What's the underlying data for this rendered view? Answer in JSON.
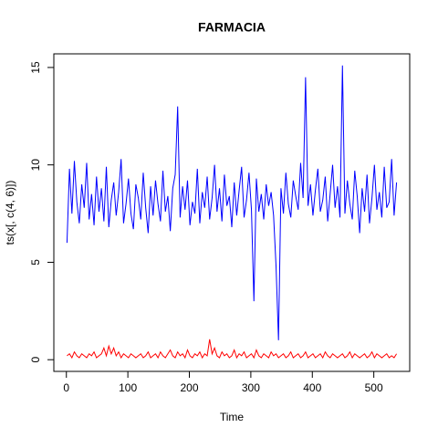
{
  "chart_data": {
    "type": "line",
    "title": "FARMACIA",
    "x_label": "Time",
    "y_label": "ts(x[, c(4, 6)])",
    "xlim": [
      -20.4,
      558.4
    ],
    "xticks": [
      0,
      100,
      200,
      300,
      400,
      500
    ],
    "ylim": [
      -0.6,
      15.7
    ],
    "yticks": [
      0,
      5,
      10,
      15
    ],
    "x": [
      1,
      5,
      9,
      13,
      17,
      21,
      25,
      29,
      33,
      37,
      41,
      45,
      49,
      53,
      57,
      61,
      65,
      69,
      73,
      77,
      81,
      85,
      89,
      93,
      97,
      101,
      105,
      109,
      113,
      117,
      121,
      125,
      129,
      133,
      137,
      141,
      145,
      149,
      153,
      157,
      161,
      165,
      169,
      173,
      177,
      181,
      185,
      189,
      193,
      197,
      201,
      205,
      209,
      213,
      217,
      221,
      225,
      229,
      233,
      237,
      241,
      245,
      249,
      253,
      257,
      261,
      265,
      269,
      273,
      277,
      281,
      285,
      289,
      293,
      297,
      301,
      305,
      309,
      313,
      317,
      321,
      325,
      329,
      333,
      337,
      341,
      345,
      349,
      353,
      357,
      361,
      365,
      369,
      373,
      377,
      381,
      385,
      389,
      393,
      397,
      401,
      405,
      409,
      413,
      417,
      421,
      425,
      429,
      433,
      437,
      441,
      445,
      449,
      453,
      457,
      461,
      465,
      469,
      473,
      477,
      481,
      485,
      489,
      493,
      497,
      501,
      505,
      509,
      513,
      517,
      521,
      525,
      529,
      533,
      537
    ],
    "series": [
      {
        "color": "#0000ff",
        "values": [
          6.0,
          9.8,
          7.5,
          10.2,
          8.1,
          7.0,
          9.0,
          7.8,
          10.1,
          7.2,
          8.5,
          6.9,
          9.4,
          7.6,
          8.8,
          7.1,
          9.9,
          6.8,
          8.2,
          9.1,
          7.4,
          8.6,
          10.3,
          7.0,
          8.0,
          9.3,
          7.5,
          6.7,
          9.0,
          8.3,
          7.2,
          9.6,
          7.8,
          6.5,
          8.9,
          7.4,
          9.2,
          8.0,
          7.1,
          9.7,
          7.6,
          8.4,
          6.6,
          8.8,
          9.5,
          13.0,
          7.3,
          8.9,
          7.7,
          9.2,
          6.9,
          8.1,
          7.5,
          9.8,
          7.0,
          8.6,
          7.8,
          9.4,
          7.2,
          8.3,
          10.0,
          7.6,
          8.8,
          7.1,
          9.5,
          7.9,
          8.4,
          6.8,
          9.1,
          7.4,
          8.7,
          9.9,
          7.3,
          8.2,
          9.6,
          7.7,
          3.0,
          9.3,
          7.6,
          8.5,
          7.2,
          9.0,
          7.9,
          8.6,
          7.4,
          4.8,
          1.0,
          8.8,
          7.5,
          9.6,
          8.0,
          7.3,
          9.2,
          8.4,
          7.7,
          10.1,
          8.3,
          14.5,
          7.9,
          9.0,
          7.4,
          8.7,
          9.8,
          7.6,
          8.2,
          9.4,
          7.1,
          8.5,
          10.0,
          7.8,
          8.9,
          7.3,
          15.1,
          7.5,
          9.2,
          8.0,
          7.2,
          9.7,
          8.4,
          6.5,
          8.8,
          7.6,
          9.5,
          7.0,
          8.3,
          10.0,
          7.7,
          8.6,
          7.3,
          9.9,
          7.8,
          8.1,
          10.3,
          7.4,
          9.1
        ]
      },
      {
        "color": "#ff0000",
        "values": [
          0.2,
          0.3,
          0.1,
          0.4,
          0.2,
          0.1,
          0.3,
          0.2,
          0.1,
          0.3,
          0.2,
          0.4,
          0.1,
          0.2,
          0.3,
          0.6,
          0.2,
          0.7,
          0.3,
          0.6,
          0.2,
          0.4,
          0.1,
          0.3,
          0.2,
          0.1,
          0.3,
          0.2,
          0.1,
          0.2,
          0.3,
          0.1,
          0.2,
          0.4,
          0.1,
          0.2,
          0.3,
          0.1,
          0.4,
          0.2,
          0.1,
          0.3,
          0.5,
          0.2,
          0.1,
          0.4,
          0.2,
          0.3,
          0.1,
          0.5,
          0.2,
          0.1,
          0.3,
          0.2,
          0.4,
          0.1,
          0.3,
          0.2,
          1.05,
          0.3,
          0.6,
          0.2,
          0.1,
          0.4,
          0.2,
          0.3,
          0.1,
          0.2,
          0.5,
          0.1,
          0.3,
          0.2,
          0.4,
          0.1,
          0.2,
          0.3,
          0.1,
          0.5,
          0.2,
          0.1,
          0.3,
          0.2,
          0.1,
          0.4,
          0.2,
          0.3,
          0.1,
          0.2,
          0.3,
          0.1,
          0.2,
          0.4,
          0.1,
          0.2,
          0.3,
          0.1,
          0.2,
          0.4,
          0.1,
          0.2,
          0.3,
          0.1,
          0.2,
          0.3,
          0.1,
          0.4,
          0.2,
          0.1,
          0.3,
          0.2,
          0.1,
          0.2,
          0.3,
          0.1,
          0.2,
          0.4,
          0.1,
          0.3,
          0.2,
          0.1,
          0.2,
          0.3,
          0.1,
          0.2,
          0.4,
          0.1,
          0.3,
          0.2,
          0.1,
          0.2,
          0.3,
          0.1,
          0.2,
          0.1,
          0.3
        ]
      }
    ]
  }
}
